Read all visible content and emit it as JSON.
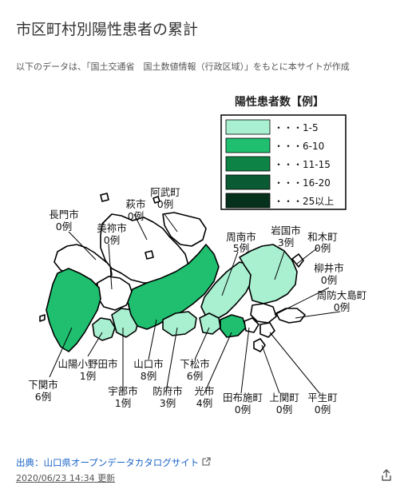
{
  "header": {
    "title": "市区町村別陽性患者の累計",
    "description": "以下のデータは、「国土交通省　国土数値情報（行政区域）」をもとに本サイトが作成"
  },
  "legend": {
    "title": "陽性患者数【例】",
    "items": [
      {
        "label": "・・・1-5",
        "color": "#a8f0d0"
      },
      {
        "label": "・・・6-10",
        "color": "#1fbf6f"
      },
      {
        "label": "・・・11-15",
        "color": "#0d8446"
      },
      {
        "label": "・・・16-20",
        "color": "#0a5a33"
      },
      {
        "label": "・・・25以上",
        "color": "#05301b"
      }
    ]
  },
  "municipalities": [
    {
      "name": "長門市",
      "count": "0例"
    },
    {
      "name": "萩市",
      "count": "0例"
    },
    {
      "name": "阿武町",
      "count": "0例"
    },
    {
      "name": "美祢市",
      "count": "0例"
    },
    {
      "name": "周南市",
      "count": "5例"
    },
    {
      "name": "岩国市",
      "count": "3例"
    },
    {
      "name": "和木町",
      "count": "0例"
    },
    {
      "name": "柳井市",
      "count": "0例"
    },
    {
      "name": "周防大島町",
      "count": "0例"
    },
    {
      "name": "山陽小野田市",
      "count": "1例"
    },
    {
      "name": "山口市",
      "count": "8例"
    },
    {
      "name": "下松市",
      "count": "6例"
    },
    {
      "name": "下関市",
      "count": "6例"
    },
    {
      "name": "宇部市",
      "count": "1例"
    },
    {
      "name": "防府市",
      "count": "3例"
    },
    {
      "name": "光市",
      "count": "4例"
    },
    {
      "name": "田布施町",
      "count": "0例"
    },
    {
      "name": "上関町",
      "count": "0例"
    },
    {
      "name": "平生町",
      "count": "0例"
    }
  ],
  "footer": {
    "source_label": "出典：山口県オープンデータカタログサイト",
    "updated_date": "2020/06/23 14:34",
    "updated_suffix": "更新"
  },
  "colors": {
    "zero": "#ffffff",
    "low": "#a8f0d0",
    "mid": "#1fbf6f",
    "link": "#1a63c8"
  },
  "icons": [
    "external-link-icon",
    "share-icon"
  ]
}
